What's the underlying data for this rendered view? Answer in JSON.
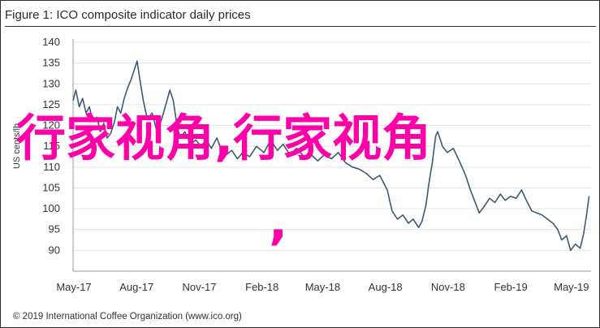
{
  "title": "Figure 1: ICO composite indicator daily prices",
  "footer": "© 2019 International Coffee Organization (www.ico.org)",
  "watermark": {
    "line1": "行家视角,行家视角",
    "line2": ",",
    "color": "#ff00a8"
  },
  "colors": {
    "series": "#3c5a74",
    "grid": "#e3e3e3",
    "axis": "#9a9a9a"
  },
  "chart_data": {
    "type": "line",
    "title": "Figure 1: ICO composite indicator daily prices",
    "xlabel": "",
    "ylabel": "US cents/lb",
    "ylim": [
      85,
      140
    ],
    "yticks": [
      90,
      95,
      100,
      105,
      110,
      115,
      120,
      125,
      130,
      135,
      140
    ],
    "xlim": [
      "2017-05-01",
      "2019-05-31"
    ],
    "xticks": [
      "May-17",
      "Aug-17",
      "Nov-17",
      "Feb-18",
      "May-18",
      "Aug-18",
      "Nov-18",
      "Feb-19",
      "May-19"
    ],
    "grid": true,
    "legend": "none",
    "series": [
      {
        "values": [
          [
            "2017-05-01",
            126.0
          ],
          [
            "2017-05-05",
            128.5
          ],
          [
            "2017-05-10",
            124.5
          ],
          [
            "2017-05-15",
            126.5
          ],
          [
            "2017-05-20",
            123.0
          ],
          [
            "2017-05-25",
            124.5
          ],
          [
            "2017-05-30",
            121.0
          ],
          [
            "2017-06-05",
            122.0
          ],
          [
            "2017-06-10",
            118.5
          ],
          [
            "2017-06-15",
            120.5
          ],
          [
            "2017-06-20",
            117.0
          ],
          [
            "2017-06-25",
            118.0
          ],
          [
            "2017-07-01",
            121.0
          ],
          [
            "2017-07-05",
            124.5
          ],
          [
            "2017-07-10",
            123.0
          ],
          [
            "2017-07-15",
            126.5
          ],
          [
            "2017-07-20",
            129.0
          ],
          [
            "2017-07-25",
            131.0
          ],
          [
            "2017-07-30",
            133.5
          ],
          [
            "2017-08-03",
            135.5
          ],
          [
            "2017-08-07",
            131.0
          ],
          [
            "2017-08-12",
            126.0
          ],
          [
            "2017-08-18",
            121.5
          ],
          [
            "2017-08-25",
            123.0
          ],
          [
            "2017-09-01",
            118.5
          ],
          [
            "2017-09-08",
            121.5
          ],
          [
            "2017-09-15",
            125.5
          ],
          [
            "2017-09-20",
            128.5
          ],
          [
            "2017-09-25",
            126.0
          ],
          [
            "2017-09-30",
            120.5
          ],
          [
            "2017-10-05",
            117.0
          ],
          [
            "2017-10-12",
            118.5
          ],
          [
            "2017-10-20",
            115.5
          ],
          [
            "2017-10-28",
            116.5
          ],
          [
            "2017-11-05",
            115.0
          ],
          [
            "2017-11-12",
            116.5
          ],
          [
            "2017-11-20",
            114.5
          ],
          [
            "2017-11-28",
            117.0
          ],
          [
            "2017-12-05",
            114.0
          ],
          [
            "2017-12-12",
            113.0
          ],
          [
            "2017-12-20",
            114.0
          ],
          [
            "2017-12-28",
            112.0
          ],
          [
            "2018-01-05",
            113.5
          ],
          [
            "2018-01-15",
            112.5
          ],
          [
            "2018-01-25",
            115.0
          ],
          [
            "2018-02-05",
            113.5
          ],
          [
            "2018-02-15",
            116.5
          ],
          [
            "2018-02-25",
            114.0
          ],
          [
            "2018-03-05",
            115.5
          ],
          [
            "2018-03-15",
            113.0
          ],
          [
            "2018-03-25",
            114.5
          ],
          [
            "2018-04-05",
            112.5
          ],
          [
            "2018-04-15",
            113.0
          ],
          [
            "2018-04-25",
            111.5
          ],
          [
            "2018-05-05",
            113.0
          ],
          [
            "2018-05-15",
            112.0
          ],
          [
            "2018-05-25",
            113.5
          ],
          [
            "2018-06-05",
            111.0
          ],
          [
            "2018-06-15",
            110.0
          ],
          [
            "2018-06-25",
            109.5
          ],
          [
            "2018-07-05",
            108.5
          ],
          [
            "2018-07-15",
            107.0
          ],
          [
            "2018-07-25",
            108.0
          ],
          [
            "2018-08-05",
            104.5
          ],
          [
            "2018-08-12",
            99.5
          ],
          [
            "2018-08-20",
            97.5
          ],
          [
            "2018-08-28",
            98.5
          ],
          [
            "2018-09-05",
            96.5
          ],
          [
            "2018-09-12",
            97.5
          ],
          [
            "2018-09-20",
            95.5
          ],
          [
            "2018-09-25",
            97.0
          ],
          [
            "2018-10-01",
            101.0
          ],
          [
            "2018-10-05",
            106.0
          ],
          [
            "2018-10-10",
            111.0
          ],
          [
            "2018-10-15",
            117.5
          ],
          [
            "2018-10-18",
            118.5
          ],
          [
            "2018-10-25",
            115.0
          ],
          [
            "2018-11-01",
            113.5
          ],
          [
            "2018-11-10",
            114.5
          ],
          [
            "2018-11-20",
            111.0
          ],
          [
            "2018-11-28",
            108.0
          ],
          [
            "2018-12-05",
            104.5
          ],
          [
            "2018-12-12",
            101.5
          ],
          [
            "2018-12-18",
            99.0
          ],
          [
            "2018-12-25",
            100.5
          ],
          [
            "2019-01-02",
            102.5
          ],
          [
            "2019-01-10",
            101.5
          ],
          [
            "2019-01-18",
            103.5
          ],
          [
            "2019-01-25",
            102.0
          ],
          [
            "2019-02-02",
            103.0
          ],
          [
            "2019-02-10",
            102.5
          ],
          [
            "2019-02-18",
            104.5
          ],
          [
            "2019-02-25",
            102.0
          ],
          [
            "2019-03-05",
            99.5
          ],
          [
            "2019-03-12",
            99.0
          ],
          [
            "2019-03-20",
            98.5
          ],
          [
            "2019-03-28",
            97.5
          ],
          [
            "2019-04-05",
            96.5
          ],
          [
            "2019-04-12",
            95.0
          ],
          [
            "2019-04-18",
            92.5
          ],
          [
            "2019-04-25",
            93.5
          ],
          [
            "2019-05-01",
            90.0
          ],
          [
            "2019-05-08",
            91.5
          ],
          [
            "2019-05-15",
            90.5
          ],
          [
            "2019-05-20",
            94.0
          ],
          [
            "2019-05-24",
            98.0
          ],
          [
            "2019-05-28",
            103.0
          ]
        ]
      }
    ]
  }
}
